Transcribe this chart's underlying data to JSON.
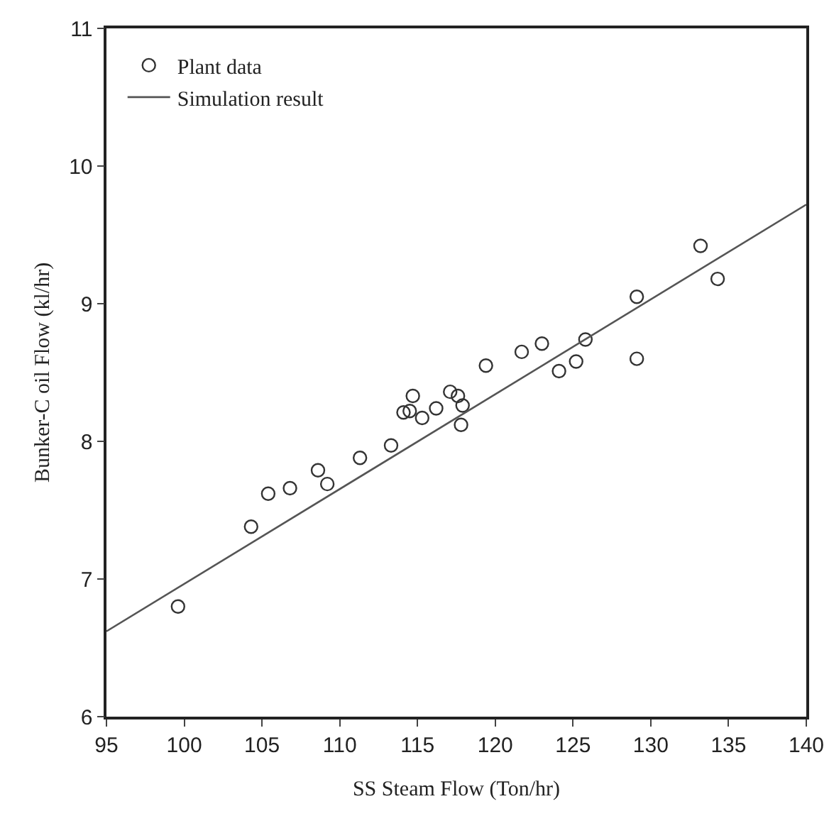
{
  "chart_data": {
    "type": "scatter",
    "xlabel": "SS Steam Flow (Ton/hr)",
    "ylabel": "Bunker-C oil Flow (kl/hr)",
    "xlim": [
      95,
      140
    ],
    "xticks": [
      95,
      100,
      105,
      110,
      115,
      120,
      125,
      130,
      135,
      140
    ],
    "ylim": [
      6,
      11
    ],
    "yticks": [
      6,
      7,
      8,
      9,
      10,
      11
    ],
    "grid": false,
    "legend": "top left",
    "series": [
      {
        "name": "Plant data",
        "marker": "circle",
        "color": "#333333",
        "x": [
          99.6,
          104.3,
          105.4,
          106.8,
          108.6,
          109.2,
          111.3,
          113.3,
          114.1,
          114.7,
          114.5,
          115.3,
          116.2,
          117.1,
          117.6,
          117.8,
          117.9,
          119.4,
          121.7,
          123.0,
          124.1,
          125.2,
          125.8,
          129.1,
          129.1,
          133.2,
          134.3
        ],
        "values": [
          6.8,
          7.38,
          7.62,
          7.66,
          7.79,
          7.69,
          7.88,
          7.97,
          8.21,
          8.33,
          8.22,
          8.17,
          8.24,
          8.36,
          8.33,
          8.12,
          8.26,
          8.55,
          8.65,
          8.71,
          8.51,
          8.58,
          8.74,
          9.05,
          8.6,
          9.42,
          9.18
        ]
      },
      {
        "name": "Simulation result",
        "type": "line",
        "color": "#555555",
        "line_style": "solid",
        "marker": "none",
        "x": [
          95,
          140
        ],
        "values": [
          6.62,
          9.72
        ]
      }
    ]
  }
}
